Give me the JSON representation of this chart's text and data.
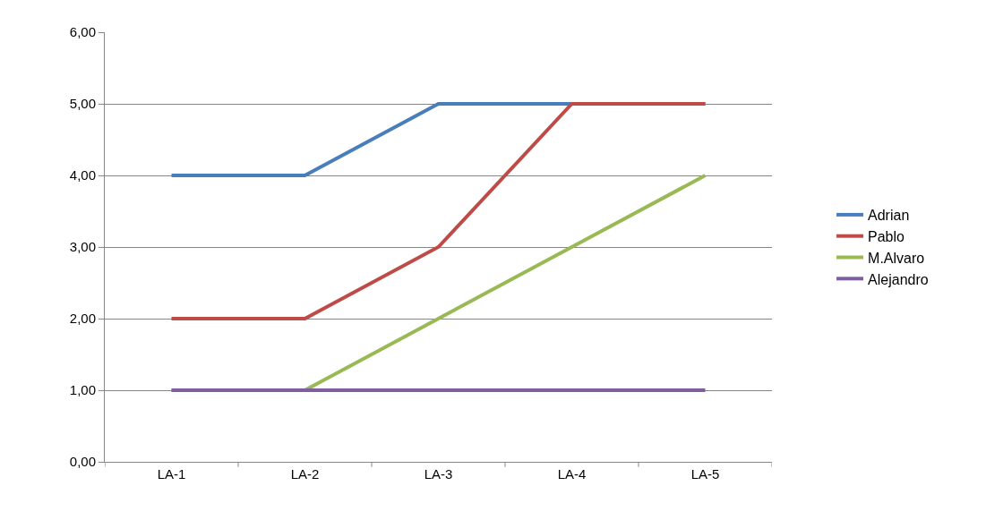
{
  "chart_data": {
    "type": "line",
    "categories": [
      "LA-1",
      "LA-2",
      "LA-3",
      "LA-4",
      "LA-5"
    ],
    "series": [
      {
        "name": "Adrian",
        "color": "#4a7ebb",
        "values": [
          4,
          4,
          5,
          5,
          5
        ]
      },
      {
        "name": "Pablo",
        "color": "#be4b48",
        "values": [
          2,
          2,
          3,
          5,
          5
        ]
      },
      {
        "name": "M.Alvaro",
        "color": "#98b954",
        "values": [
          1,
          1,
          2,
          3,
          4
        ]
      },
      {
        "name": "Alejandro",
        "color": "#7d5fa0",
        "values": [
          1,
          1,
          1,
          1,
          1
        ]
      }
    ],
    "ylim": [
      0,
      6
    ],
    "yticks": [
      {
        "value": 0,
        "label": "0,00"
      },
      {
        "value": 1,
        "label": "1,00"
      },
      {
        "value": 2,
        "label": "2,00"
      },
      {
        "value": 3,
        "label": "3,00"
      },
      {
        "value": 4,
        "label": "4,00"
      },
      {
        "value": 5,
        "label": "5,00"
      },
      {
        "value": 6,
        "label": "6,00"
      }
    ],
    "grid": "y",
    "legend": "right",
    "marker": "none",
    "line_style": "solid"
  }
}
